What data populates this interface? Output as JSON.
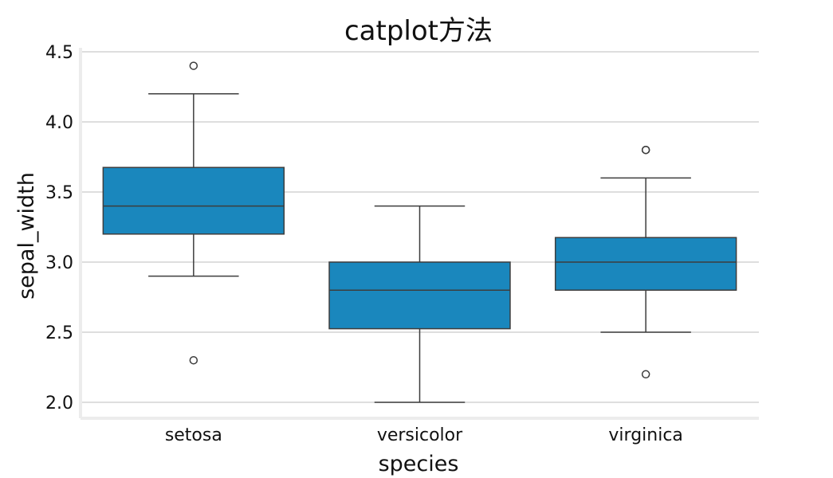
{
  "chart_data": {
    "type": "box",
    "title": "catplot方法",
    "xlabel": "species",
    "ylabel": "sepal_width",
    "ylim": [
      1.9,
      4.5
    ],
    "yticks": [
      "2.0",
      "2.5",
      "3.0",
      "3.5",
      "4.0",
      "4.5"
    ],
    "grid": "horizontal",
    "box_color": "#1a87bd",
    "categories": [
      "setosa",
      "versicolor",
      "virginica"
    ],
    "boxes": [
      {
        "category": "setosa",
        "whisker_low": 2.9,
        "q1": 3.2,
        "median": 3.4,
        "q3": 3.675,
        "whisker_high": 4.2,
        "outliers": [
          4.4,
          2.3
        ]
      },
      {
        "category": "versicolor",
        "whisker_low": 2.0,
        "q1": 2.525,
        "median": 2.8,
        "q3": 3.0,
        "whisker_high": 3.4,
        "outliers": []
      },
      {
        "category": "virginica",
        "whisker_low": 2.5,
        "q1": 2.8,
        "median": 3.0,
        "q3": 3.175,
        "whisker_high": 3.6,
        "outliers": [
          3.8,
          3.8,
          2.2
        ]
      }
    ]
  }
}
